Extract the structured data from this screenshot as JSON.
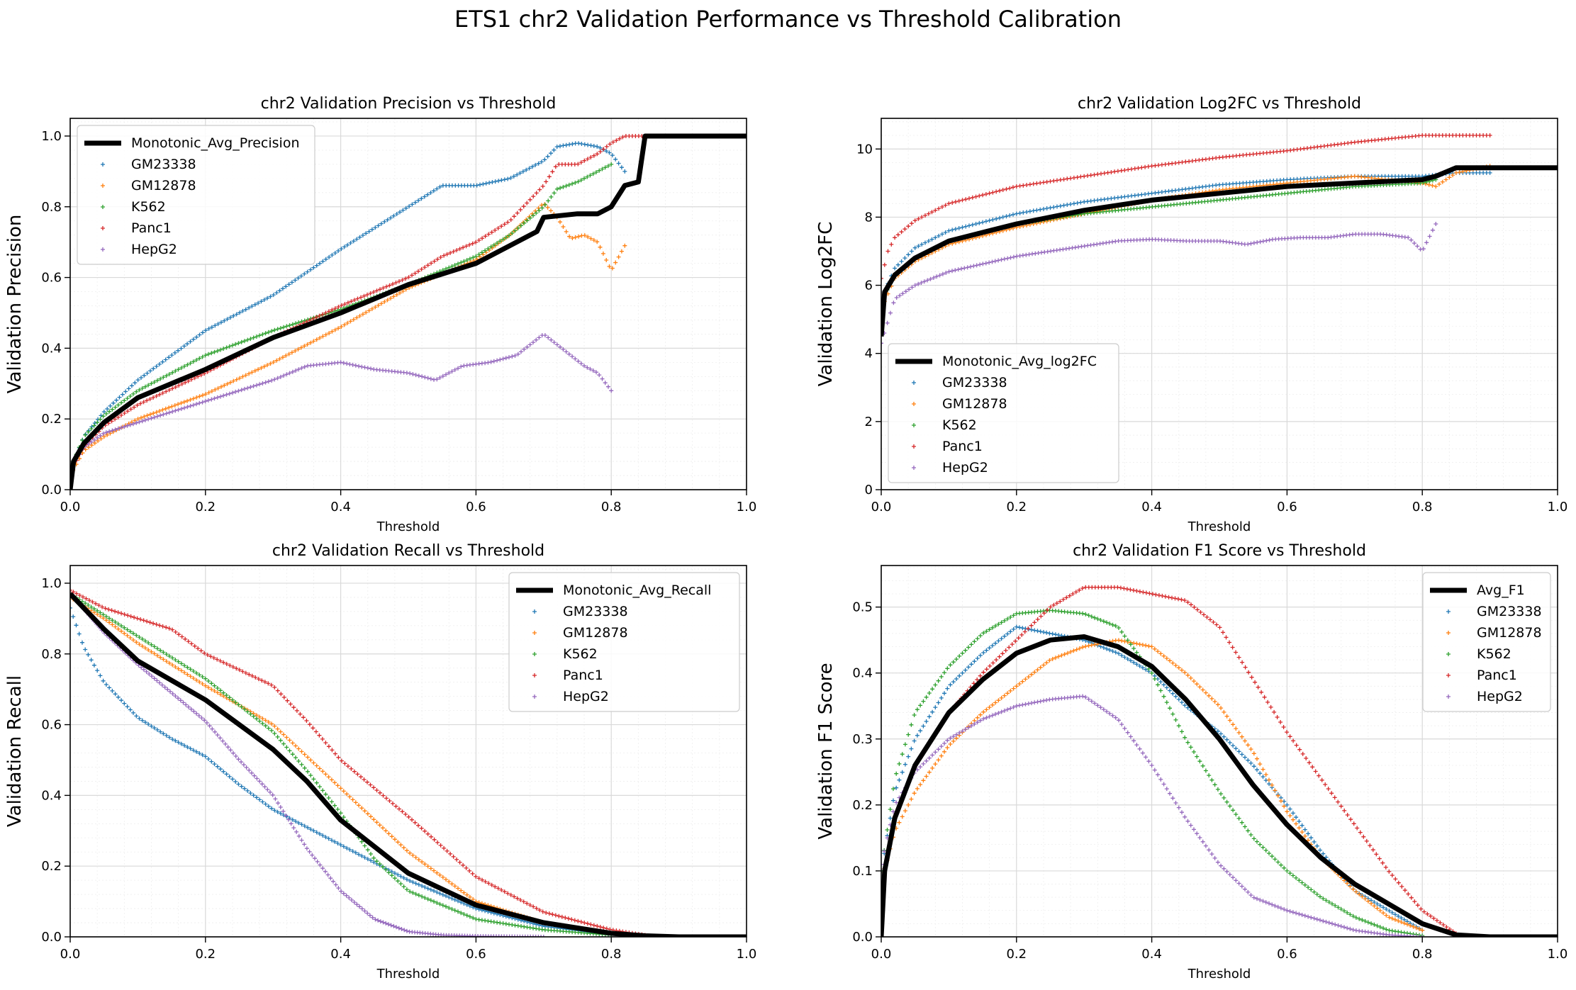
{
  "suptitle": "ETS1 chr2 Validation Performance vs Threshold Calibration",
  "colors": {
    "GM23338": "#1f77b4",
    "GM12878": "#ff7f0e",
    "K562": "#2ca02c",
    "Panc1": "#d62728",
    "HepG2": "#9467bd",
    "avg": "#000000"
  },
  "chart_data": [
    {
      "type": "scatter",
      "title": "chr2 Validation Precision vs Threshold",
      "xlabel": "Threshold",
      "ylabel": "Validation Precision",
      "xlim": [
        0,
        1
      ],
      "ylim": [
        0,
        1.05
      ],
      "xticks": [
        "0.0",
        "0.2",
        "0.4",
        "0.6",
        "0.8",
        "1.0"
      ],
      "yticks": [
        "0.0",
        "0.2",
        "0.4",
        "0.6",
        "0.8",
        "1.0"
      ],
      "grid": true,
      "legend_position": "upper-left",
      "avg": {
        "name": "Monotonic_Avg_Precision",
        "x": [
          0.0,
          0.005,
          0.02,
          0.05,
          0.1,
          0.2,
          0.3,
          0.4,
          0.5,
          0.55,
          0.6,
          0.65,
          0.69,
          0.7,
          0.75,
          0.78,
          0.8,
          0.82,
          0.84,
          0.85,
          0.9,
          1.0
        ],
        "y": [
          0.0,
          0.08,
          0.13,
          0.19,
          0.26,
          0.34,
          0.43,
          0.5,
          0.58,
          0.61,
          0.64,
          0.69,
          0.73,
          0.77,
          0.78,
          0.78,
          0.8,
          0.86,
          0.87,
          1.0,
          1.0,
          1.0
        ]
      },
      "series": [
        {
          "name": "GM23338",
          "x": [
            0.0,
            0.02,
            0.05,
            0.1,
            0.2,
            0.3,
            0.4,
            0.5,
            0.55,
            0.6,
            0.65,
            0.7,
            0.72,
            0.75,
            0.78,
            0.8,
            0.82
          ],
          "y": [
            0.05,
            0.15,
            0.22,
            0.31,
            0.45,
            0.55,
            0.68,
            0.8,
            0.86,
            0.86,
            0.88,
            0.93,
            0.97,
            0.98,
            0.97,
            0.95,
            0.9
          ]
        },
        {
          "name": "GM12878",
          "x": [
            0.0,
            0.02,
            0.05,
            0.1,
            0.2,
            0.3,
            0.4,
            0.5,
            0.6,
            0.65,
            0.7,
            0.72,
            0.74,
            0.76,
            0.78,
            0.8,
            0.82
          ],
          "y": [
            0.04,
            0.11,
            0.15,
            0.2,
            0.27,
            0.36,
            0.46,
            0.57,
            0.65,
            0.72,
            0.81,
            0.77,
            0.71,
            0.72,
            0.7,
            0.62,
            0.69
          ]
        },
        {
          "name": "K562",
          "x": [
            0.0,
            0.02,
            0.05,
            0.1,
            0.2,
            0.3,
            0.4,
            0.5,
            0.55,
            0.6,
            0.65,
            0.7,
            0.72,
            0.75,
            0.78,
            0.8
          ],
          "y": [
            0.06,
            0.15,
            0.21,
            0.28,
            0.38,
            0.45,
            0.51,
            0.58,
            0.62,
            0.66,
            0.72,
            0.8,
            0.85,
            0.87,
            0.9,
            0.92
          ]
        },
        {
          "name": "Panc1",
          "x": [
            0.0,
            0.02,
            0.05,
            0.1,
            0.2,
            0.3,
            0.4,
            0.5,
            0.55,
            0.6,
            0.65,
            0.7,
            0.72,
            0.75,
            0.78,
            0.8,
            0.82,
            0.85
          ],
          "y": [
            0.05,
            0.12,
            0.18,
            0.24,
            0.33,
            0.43,
            0.52,
            0.6,
            0.66,
            0.7,
            0.76,
            0.86,
            0.92,
            0.92,
            0.95,
            0.98,
            1.0,
            1.0
          ]
        },
        {
          "name": "HepG2",
          "x": [
            0.0,
            0.02,
            0.05,
            0.1,
            0.2,
            0.3,
            0.35,
            0.4,
            0.45,
            0.5,
            0.54,
            0.58,
            0.62,
            0.66,
            0.7,
            0.74,
            0.76,
            0.78,
            0.8
          ],
          "y": [
            0.06,
            0.12,
            0.16,
            0.19,
            0.25,
            0.31,
            0.35,
            0.36,
            0.34,
            0.33,
            0.31,
            0.35,
            0.36,
            0.38,
            0.44,
            0.38,
            0.35,
            0.33,
            0.28
          ]
        }
      ]
    },
    {
      "type": "scatter",
      "title": "chr2 Validation Log2FC vs Threshold",
      "xlabel": "Threshold",
      "ylabel": "Validation Log2FC",
      "xlim": [
        0,
        1
      ],
      "ylim": [
        0,
        10.9
      ],
      "xticks": [
        "0.0",
        "0.2",
        "0.4",
        "0.6",
        "0.8",
        "1.0"
      ],
      "yticks": [
        "0",
        "2",
        "4",
        "6",
        "8",
        "10"
      ],
      "grid": true,
      "legend_position": "lower-left",
      "avg": {
        "name": "Monotonic_Avg_log2FC",
        "x": [
          0.0,
          0.005,
          0.02,
          0.05,
          0.1,
          0.2,
          0.3,
          0.4,
          0.5,
          0.6,
          0.7,
          0.8,
          0.82,
          0.85,
          0.9,
          1.0
        ],
        "y": [
          4.5,
          5.8,
          6.3,
          6.8,
          7.3,
          7.8,
          8.2,
          8.5,
          8.7,
          8.9,
          9.0,
          9.1,
          9.2,
          9.45,
          9.45,
          9.45
        ]
      },
      "series": [
        {
          "name": "GM23338",
          "x": [
            0.0,
            0.02,
            0.05,
            0.1,
            0.2,
            0.3,
            0.4,
            0.5,
            0.6,
            0.7,
            0.8,
            0.85,
            0.9
          ],
          "y": [
            5.6,
            6.5,
            7.1,
            7.6,
            8.1,
            8.45,
            8.7,
            8.95,
            9.1,
            9.2,
            9.2,
            9.3,
            9.3
          ]
        },
        {
          "name": "GM12878",
          "x": [
            0.0,
            0.02,
            0.05,
            0.1,
            0.2,
            0.3,
            0.4,
            0.5,
            0.6,
            0.7,
            0.8,
            0.82,
            0.85,
            0.9
          ],
          "y": [
            5.3,
            6.2,
            6.7,
            7.2,
            7.7,
            8.1,
            8.5,
            8.8,
            9.0,
            9.2,
            9.0,
            8.9,
            9.3,
            9.5
          ]
        },
        {
          "name": "K562",
          "x": [
            0.0,
            0.02,
            0.05,
            0.1,
            0.2,
            0.3,
            0.4,
            0.5,
            0.6,
            0.7,
            0.8,
            0.82
          ],
          "y": [
            5.5,
            6.3,
            6.8,
            7.3,
            7.8,
            8.1,
            8.3,
            8.5,
            8.7,
            8.9,
            9.0,
            9.1
          ]
        },
        {
          "name": "Panc1",
          "x": [
            0.0,
            0.01,
            0.02,
            0.05,
            0.1,
            0.2,
            0.3,
            0.4,
            0.5,
            0.6,
            0.7,
            0.8,
            0.9
          ],
          "y": [
            6.2,
            7.0,
            7.4,
            7.9,
            8.4,
            8.9,
            9.2,
            9.5,
            9.75,
            9.95,
            10.2,
            10.4,
            10.4
          ]
        },
        {
          "name": "HepG2",
          "x": [
            0.0,
            0.02,
            0.05,
            0.1,
            0.2,
            0.3,
            0.35,
            0.4,
            0.45,
            0.5,
            0.54,
            0.58,
            0.62,
            0.66,
            0.7,
            0.74,
            0.78,
            0.8,
            0.82
          ],
          "y": [
            4.3,
            5.6,
            6.0,
            6.4,
            6.85,
            7.15,
            7.3,
            7.35,
            7.3,
            7.3,
            7.2,
            7.35,
            7.4,
            7.4,
            7.5,
            7.5,
            7.4,
            7.0,
            7.8
          ]
        }
      ]
    },
    {
      "type": "scatter",
      "title": "chr2 Validation Recall vs Threshold",
      "xlabel": "Threshold",
      "ylabel": "Validation Recall",
      "xlim": [
        0,
        1
      ],
      "ylim": [
        0,
        1.05
      ],
      "xticks": [
        "0.0",
        "0.2",
        "0.4",
        "0.6",
        "0.8",
        "1.0"
      ],
      "yticks": [
        "0.0",
        "0.2",
        "0.4",
        "0.6",
        "0.8",
        "1.0"
      ],
      "grid": true,
      "legend_position": "upper-right",
      "avg": {
        "name": "Monotonic_Avg_Recall",
        "x": [
          0.0,
          0.05,
          0.1,
          0.2,
          0.3,
          0.35,
          0.4,
          0.5,
          0.6,
          0.7,
          0.8,
          0.85,
          0.9,
          1.0
        ],
        "y": [
          0.97,
          0.87,
          0.78,
          0.67,
          0.53,
          0.44,
          0.33,
          0.18,
          0.09,
          0.04,
          0.01,
          0.003,
          0.0,
          0.0
        ]
      },
      "series": [
        {
          "name": "GM23338",
          "x": [
            0.0,
            0.02,
            0.05,
            0.1,
            0.15,
            0.2,
            0.25,
            0.3,
            0.35,
            0.4,
            0.45,
            0.5,
            0.6,
            0.7,
            0.8
          ],
          "y": [
            0.93,
            0.82,
            0.72,
            0.62,
            0.56,
            0.51,
            0.43,
            0.36,
            0.31,
            0.26,
            0.21,
            0.16,
            0.08,
            0.03,
            0.005
          ]
        },
        {
          "name": "GM12878",
          "x": [
            0.0,
            0.05,
            0.1,
            0.2,
            0.3,
            0.35,
            0.4,
            0.5,
            0.6,
            0.7,
            0.8
          ],
          "y": [
            0.96,
            0.9,
            0.83,
            0.71,
            0.6,
            0.51,
            0.42,
            0.24,
            0.1,
            0.04,
            0.01
          ]
        },
        {
          "name": "K562",
          "x": [
            0.0,
            0.05,
            0.1,
            0.2,
            0.3,
            0.35,
            0.4,
            0.45,
            0.5,
            0.6,
            0.7,
            0.8
          ],
          "y": [
            0.97,
            0.91,
            0.85,
            0.73,
            0.58,
            0.47,
            0.35,
            0.22,
            0.13,
            0.05,
            0.02,
            0.005
          ]
        },
        {
          "name": "Panc1",
          "x": [
            0.0,
            0.05,
            0.1,
            0.15,
            0.2,
            0.3,
            0.35,
            0.4,
            0.5,
            0.6,
            0.7,
            0.8,
            0.85
          ],
          "y": [
            0.98,
            0.93,
            0.9,
            0.87,
            0.8,
            0.71,
            0.61,
            0.5,
            0.34,
            0.17,
            0.07,
            0.02,
            0.005
          ]
        },
        {
          "name": "HepG2",
          "x": [
            0.0,
            0.05,
            0.1,
            0.2,
            0.25,
            0.3,
            0.35,
            0.4,
            0.45,
            0.5,
            0.55,
            0.6,
            0.7
          ],
          "y": [
            0.97,
            0.86,
            0.77,
            0.61,
            0.5,
            0.4,
            0.25,
            0.13,
            0.05,
            0.015,
            0.005,
            0.002,
            0.0
          ]
        }
      ]
    },
    {
      "type": "scatter",
      "title": "chr2 Validation F1 Score vs Threshold",
      "xlabel": "Threshold",
      "ylabel": "Validation F1 Score",
      "xlim": [
        0,
        1
      ],
      "ylim": [
        0,
        0.563
      ],
      "xticks": [
        "0.0",
        "0.2",
        "0.4",
        "0.6",
        "0.8",
        "1.0"
      ],
      "yticks": [
        "0.0",
        "0.1",
        "0.2",
        "0.3",
        "0.4",
        "0.5"
      ],
      "grid": true,
      "legend_position": "upper-right",
      "avg": {
        "name": "Avg_F1",
        "x": [
          0.0,
          0.005,
          0.02,
          0.05,
          0.1,
          0.15,
          0.2,
          0.25,
          0.3,
          0.35,
          0.4,
          0.45,
          0.5,
          0.55,
          0.6,
          0.65,
          0.7,
          0.75,
          0.8,
          0.85,
          0.9,
          1.0
        ],
        "y": [
          0.0,
          0.1,
          0.18,
          0.26,
          0.34,
          0.39,
          0.43,
          0.45,
          0.455,
          0.44,
          0.41,
          0.36,
          0.3,
          0.23,
          0.17,
          0.12,
          0.08,
          0.05,
          0.02,
          0.003,
          0.0,
          0.0
        ]
      },
      "series": [
        {
          "name": "GM23338",
          "x": [
            0.0,
            0.02,
            0.05,
            0.1,
            0.15,
            0.2,
            0.25,
            0.3,
            0.35,
            0.4,
            0.45,
            0.5,
            0.55,
            0.6,
            0.65,
            0.7,
            0.75,
            0.8
          ],
          "y": [
            0.1,
            0.22,
            0.3,
            0.38,
            0.43,
            0.47,
            0.46,
            0.45,
            0.43,
            0.4,
            0.35,
            0.31,
            0.26,
            0.2,
            0.13,
            0.07,
            0.04,
            0.01
          ]
        },
        {
          "name": "GM12878",
          "x": [
            0.0,
            0.02,
            0.05,
            0.1,
            0.15,
            0.2,
            0.25,
            0.3,
            0.35,
            0.4,
            0.45,
            0.5,
            0.55,
            0.6,
            0.65,
            0.7,
            0.75,
            0.8
          ],
          "y": [
            0.08,
            0.16,
            0.22,
            0.29,
            0.34,
            0.38,
            0.42,
            0.44,
            0.45,
            0.44,
            0.4,
            0.35,
            0.28,
            0.19,
            0.12,
            0.07,
            0.03,
            0.01
          ]
        },
        {
          "name": "K562",
          "x": [
            0.0,
            0.02,
            0.05,
            0.1,
            0.15,
            0.2,
            0.25,
            0.3,
            0.35,
            0.4,
            0.45,
            0.5,
            0.55,
            0.6,
            0.65,
            0.7,
            0.75,
            0.8
          ],
          "y": [
            0.1,
            0.24,
            0.34,
            0.41,
            0.46,
            0.49,
            0.495,
            0.49,
            0.47,
            0.4,
            0.3,
            0.22,
            0.15,
            0.1,
            0.06,
            0.03,
            0.01,
            0.002
          ]
        },
        {
          "name": "Panc1",
          "x": [
            0.0,
            0.02,
            0.05,
            0.1,
            0.15,
            0.2,
            0.25,
            0.3,
            0.35,
            0.4,
            0.45,
            0.5,
            0.55,
            0.6,
            0.65,
            0.7,
            0.75,
            0.8,
            0.85
          ],
          "y": [
            0.08,
            0.18,
            0.26,
            0.34,
            0.4,
            0.45,
            0.5,
            0.53,
            0.53,
            0.52,
            0.51,
            0.47,
            0.39,
            0.31,
            0.24,
            0.17,
            0.1,
            0.04,
            0.005
          ]
        },
        {
          "name": "HepG2",
          "x": [
            0.0,
            0.02,
            0.05,
            0.1,
            0.15,
            0.2,
            0.25,
            0.3,
            0.35,
            0.4,
            0.45,
            0.5,
            0.55,
            0.6,
            0.7,
            0.75,
            0.8
          ],
          "y": [
            0.11,
            0.2,
            0.25,
            0.3,
            0.33,
            0.35,
            0.36,
            0.365,
            0.33,
            0.26,
            0.18,
            0.11,
            0.06,
            0.04,
            0.01,
            0.003,
            0.0
          ]
        }
      ]
    }
  ]
}
